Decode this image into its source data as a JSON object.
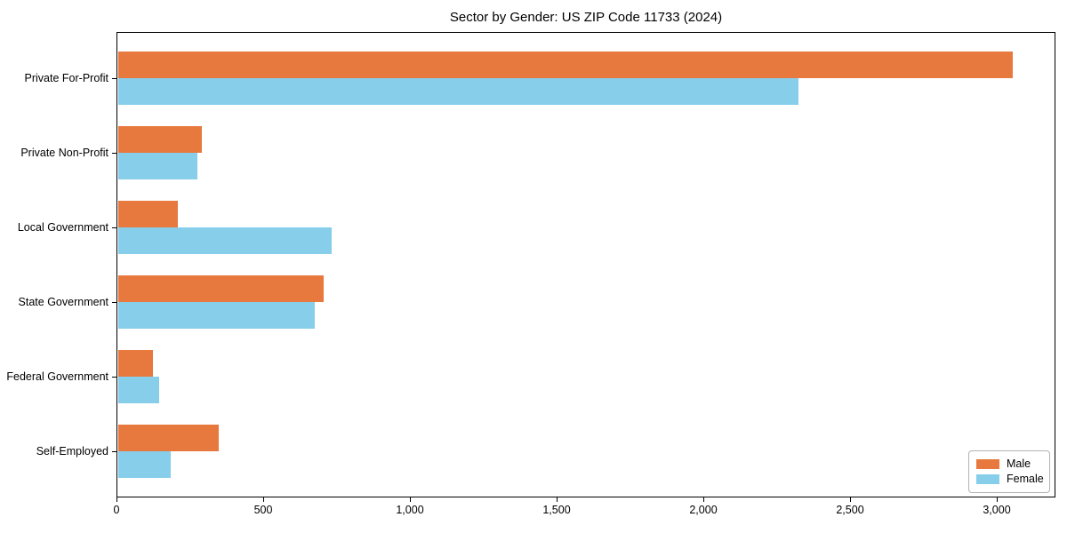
{
  "chart_data": {
    "type": "bar",
    "orientation": "horizontal",
    "title": "Sector by Gender: US ZIP Code 11733 (2024)",
    "categories": [
      "Private For-Profit",
      "Private Non-Profit",
      "Local Government",
      "State Government",
      "Federal Government",
      "Self-Employed"
    ],
    "series": [
      {
        "name": "Male",
        "color": "#e8793e",
        "values": [
          3050,
          285,
          205,
          700,
          120,
          345
        ]
      },
      {
        "name": "Female",
        "color": "#87ceeb",
        "values": [
          2320,
          270,
          730,
          670,
          140,
          180
        ]
      }
    ],
    "xlabel": "",
    "ylabel": "",
    "xlim": [
      0,
      3200
    ],
    "x_ticks": [
      0,
      500,
      1000,
      1500,
      2000,
      2500,
      3000
    ],
    "x_tick_labels": [
      "0",
      "500",
      "1,000",
      "1,500",
      "2,000",
      "2,500",
      "3,000"
    ],
    "grid": false,
    "legend_position": "lower right",
    "legend_entries": [
      "Male",
      "Female"
    ]
  }
}
